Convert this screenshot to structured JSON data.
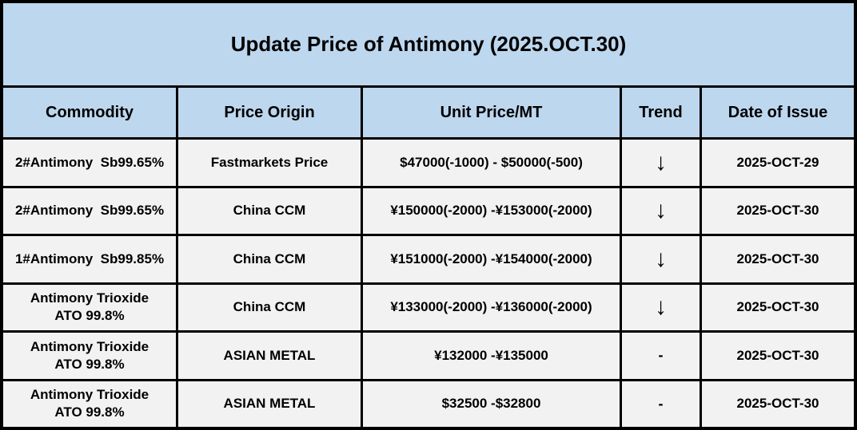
{
  "title": "Update Price of Antimony (2025.OCT.30)",
  "colors": {
    "header_bg": "#BDD7EE",
    "row_bg": "#F2F2F2",
    "border": "#000000",
    "text": "#000000"
  },
  "columns": [
    "Commodity",
    "Price Origin",
    "Unit Price/MT",
    "Trend",
    "Date of Issue"
  ],
  "rows": [
    {
      "commodity": "2#Antimony  Sb99.65%",
      "origin": "Fastmarkets Price",
      "price": "$47000(-1000) - $50000(-500)",
      "trend": "↓",
      "date": "2025-OCT-29"
    },
    {
      "commodity": "2#Antimony  Sb99.65%",
      "origin": "China CCM",
      "price": "¥150000(-2000) -¥153000(-2000)",
      "trend": "↓",
      "date": "2025-OCT-30"
    },
    {
      "commodity": "1#Antimony  Sb99.85%",
      "origin": "China CCM",
      "price": "¥151000(-2000) -¥154000(-2000)",
      "trend": "↓",
      "date": "2025-OCT-30"
    },
    {
      "commodity": "Antimony Trioxide\nATO 99.8%",
      "origin": "China CCM",
      "price": "¥133000(-2000) -¥136000(-2000)",
      "trend": "↓",
      "date": "2025-OCT-30"
    },
    {
      "commodity": "Antimony Trioxide\nATO 99.8%",
      "origin": "ASIAN METAL",
      "price": "¥132000 -¥135000",
      "trend": "-",
      "date": "2025-OCT-30"
    },
    {
      "commodity": "Antimony Trioxide\nATO 99.8%",
      "origin": "ASIAN METAL",
      "price": "$32500 -$32800",
      "trend": "-",
      "date": "2025-OCT-30"
    }
  ],
  "chart_data": {
    "type": "table",
    "title": "Update Price of Antimony (2025.OCT.30)",
    "columns": [
      "Commodity",
      "Price Origin",
      "Unit Price/MT",
      "Trend",
      "Date of Issue"
    ],
    "rows": [
      [
        "2#Antimony  Sb99.65%",
        "Fastmarkets Price",
        "$47000(-1000) - $50000(-500)",
        "↓",
        "2025-OCT-29"
      ],
      [
        "2#Antimony  Sb99.65%",
        "China CCM",
        "¥150000(-2000) -¥153000(-2000)",
        "↓",
        "2025-OCT-30"
      ],
      [
        "1#Antimony  Sb99.85%",
        "China CCM",
        "¥151000(-2000) -¥154000(-2000)",
        "↓",
        "2025-OCT-30"
      ],
      [
        "Antimony Trioxide ATO 99.8%",
        "China CCM",
        "¥133000(-2000) -¥136000(-2000)",
        "↓",
        "2025-OCT-30"
      ],
      [
        "Antimony Trioxide ATO 99.8%",
        "ASIAN METAL",
        "¥132000 -¥135000",
        "-",
        "2025-OCT-30"
      ],
      [
        "Antimony Trioxide ATO 99.8%",
        "ASIAN METAL",
        "$32500 -$32800",
        "-",
        "2025-OCT-30"
      ]
    ],
    "price_ranges_numeric": [
      {
        "currency": "USD",
        "low": 47000,
        "low_change": -1000,
        "high": 50000,
        "high_change": -500
      },
      {
        "currency": "CNY",
        "low": 150000,
        "low_change": -2000,
        "high": 153000,
        "high_change": -2000
      },
      {
        "currency": "CNY",
        "low": 151000,
        "low_change": -2000,
        "high": 154000,
        "high_change": -2000
      },
      {
        "currency": "CNY",
        "low": 133000,
        "low_change": -2000,
        "high": 136000,
        "high_change": -2000
      },
      {
        "currency": "CNY",
        "low": 132000,
        "low_change": 0,
        "high": 135000,
        "high_change": 0
      },
      {
        "currency": "USD",
        "low": 32500,
        "low_change": 0,
        "high": 32800,
        "high_change": 0
      }
    ]
  }
}
